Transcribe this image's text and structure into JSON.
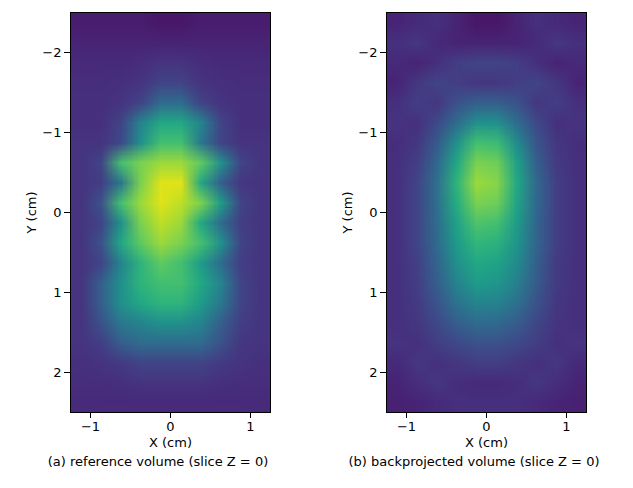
{
  "chart_data": [
    {
      "type": "heatmap",
      "title": "(a) reference volume (slice Z = 0)",
      "x_label": "X (cm)",
      "y_label": "Y (cm)",
      "color": "viridis",
      "zlim": [
        0,
        1
      ],
      "xlim": [
        -1.25,
        1.25
      ],
      "ylim": [
        2.5,
        -2.5
      ],
      "xticks": [
        {
          "value": -1,
          "label": "−1"
        },
        0,
        1
      ],
      "yticks": [
        {
          "value": -2,
          "label": "−2"
        },
        {
          "value": -1,
          "label": "−1"
        },
        0,
        1,
        2
      ],
      "z": [
        [
          0.08,
          0.08,
          0.08,
          0.08,
          0.06,
          0.06,
          0.08,
          0.08,
          0.08,
          0.08
        ],
        [
          0.1,
          0.1,
          0.1,
          0.1,
          0.1,
          0.1,
          0.1,
          0.1,
          0.1,
          0.1
        ],
        [
          0.12,
          0.12,
          0.12,
          0.13,
          0.15,
          0.15,
          0.13,
          0.12,
          0.12,
          0.12
        ],
        [
          0.13,
          0.13,
          0.14,
          0.15,
          0.2,
          0.2,
          0.15,
          0.14,
          0.13,
          0.13
        ],
        [
          0.14,
          0.14,
          0.15,
          0.2,
          0.35,
          0.35,
          0.2,
          0.15,
          0.14,
          0.14
        ],
        [
          0.14,
          0.14,
          0.2,
          0.45,
          0.6,
          0.6,
          0.45,
          0.2,
          0.14,
          0.14
        ],
        [
          0.15,
          0.15,
          0.22,
          0.5,
          0.7,
          0.7,
          0.4,
          0.2,
          0.15,
          0.15
        ],
        [
          0.15,
          0.2,
          0.7,
          0.8,
          0.85,
          0.85,
          0.75,
          0.5,
          0.2,
          0.15
        ],
        [
          0.15,
          0.18,
          0.4,
          0.8,
          0.95,
          0.95,
          0.6,
          0.3,
          0.16,
          0.15
        ],
        [
          0.15,
          0.25,
          0.7,
          0.85,
          0.95,
          0.9,
          0.8,
          0.55,
          0.2,
          0.15
        ],
        [
          0.15,
          0.2,
          0.5,
          0.8,
          0.9,
          0.85,
          0.6,
          0.35,
          0.18,
          0.15
        ],
        [
          0.15,
          0.25,
          0.6,
          0.75,
          0.85,
          0.8,
          0.7,
          0.5,
          0.2,
          0.15
        ],
        [
          0.15,
          0.2,
          0.45,
          0.65,
          0.75,
          0.7,
          0.55,
          0.35,
          0.18,
          0.15
        ],
        [
          0.15,
          0.3,
          0.5,
          0.65,
          0.7,
          0.7,
          0.6,
          0.45,
          0.2,
          0.15
        ],
        [
          0.15,
          0.3,
          0.5,
          0.6,
          0.65,
          0.65,
          0.55,
          0.4,
          0.2,
          0.15
        ],
        [
          0.15,
          0.25,
          0.4,
          0.45,
          0.5,
          0.5,
          0.45,
          0.3,
          0.18,
          0.15
        ],
        [
          0.15,
          0.18,
          0.3,
          0.35,
          0.35,
          0.35,
          0.35,
          0.25,
          0.16,
          0.15
        ],
        [
          0.14,
          0.15,
          0.17,
          0.2,
          0.2,
          0.2,
          0.2,
          0.17,
          0.15,
          0.14
        ],
        [
          0.13,
          0.13,
          0.14,
          0.15,
          0.15,
          0.15,
          0.15,
          0.14,
          0.13,
          0.13
        ],
        [
          0.12,
          0.12,
          0.12,
          0.12,
          0.12,
          0.12,
          0.12,
          0.12,
          0.12,
          0.12
        ]
      ]
    },
    {
      "type": "heatmap",
      "title": "(b) backprojected volume (slice Z = 0)",
      "x_label": "X (cm)",
      "y_label": "Y (cm)",
      "color": "viridis",
      "zlim": [
        0,
        1
      ],
      "xlim": [
        -1.25,
        1.25
      ],
      "ylim": [
        2.5,
        -2.5
      ],
      "xticks": [
        {
          "value": -1,
          "label": "−1"
        },
        0,
        1
      ],
      "yticks": [
        {
          "value": -2,
          "label": "−2"
        },
        {
          "value": -1,
          "label": "−1"
        },
        0,
        1,
        2
      ],
      "z": [
        [
          0.1,
          0.12,
          0.14,
          0.1,
          0.06,
          0.06,
          0.1,
          0.14,
          0.12,
          0.1
        ],
        [
          0.14,
          0.16,
          0.12,
          0.1,
          0.1,
          0.1,
          0.1,
          0.12,
          0.16,
          0.14
        ],
        [
          0.12,
          0.1,
          0.14,
          0.18,
          0.2,
          0.2,
          0.18,
          0.14,
          0.1,
          0.12
        ],
        [
          0.1,
          0.16,
          0.2,
          0.18,
          0.16,
          0.16,
          0.18,
          0.2,
          0.16,
          0.1
        ],
        [
          0.14,
          0.18,
          0.16,
          0.25,
          0.3,
          0.3,
          0.25,
          0.16,
          0.18,
          0.14
        ],
        [
          0.15,
          0.14,
          0.22,
          0.35,
          0.5,
          0.5,
          0.35,
          0.22,
          0.14,
          0.15
        ],
        [
          0.13,
          0.16,
          0.28,
          0.5,
          0.7,
          0.68,
          0.48,
          0.26,
          0.16,
          0.13
        ],
        [
          0.14,
          0.18,
          0.33,
          0.6,
          0.8,
          0.78,
          0.57,
          0.3,
          0.17,
          0.14
        ],
        [
          0.14,
          0.2,
          0.36,
          0.65,
          0.85,
          0.82,
          0.6,
          0.33,
          0.18,
          0.14
        ],
        [
          0.14,
          0.2,
          0.36,
          0.62,
          0.8,
          0.78,
          0.58,
          0.33,
          0.18,
          0.14
        ],
        [
          0.14,
          0.2,
          0.35,
          0.58,
          0.72,
          0.7,
          0.55,
          0.32,
          0.18,
          0.14
        ],
        [
          0.14,
          0.2,
          0.34,
          0.55,
          0.66,
          0.64,
          0.52,
          0.32,
          0.18,
          0.14
        ],
        [
          0.14,
          0.19,
          0.32,
          0.5,
          0.6,
          0.58,
          0.48,
          0.3,
          0.17,
          0.14
        ],
        [
          0.14,
          0.18,
          0.3,
          0.45,
          0.55,
          0.53,
          0.43,
          0.28,
          0.17,
          0.14
        ],
        [
          0.14,
          0.17,
          0.26,
          0.38,
          0.45,
          0.44,
          0.37,
          0.25,
          0.16,
          0.14
        ],
        [
          0.14,
          0.16,
          0.22,
          0.3,
          0.35,
          0.34,
          0.29,
          0.21,
          0.15,
          0.14
        ],
        [
          0.15,
          0.14,
          0.18,
          0.22,
          0.25,
          0.25,
          0.22,
          0.18,
          0.14,
          0.15
        ],
        [
          0.12,
          0.16,
          0.14,
          0.16,
          0.18,
          0.18,
          0.16,
          0.14,
          0.16,
          0.12
        ],
        [
          0.1,
          0.13,
          0.16,
          0.13,
          0.12,
          0.12,
          0.13,
          0.16,
          0.13,
          0.1
        ],
        [
          0.09,
          0.1,
          0.12,
          0.14,
          0.14,
          0.14,
          0.14,
          0.12,
          0.1,
          0.09
        ]
      ]
    }
  ]
}
